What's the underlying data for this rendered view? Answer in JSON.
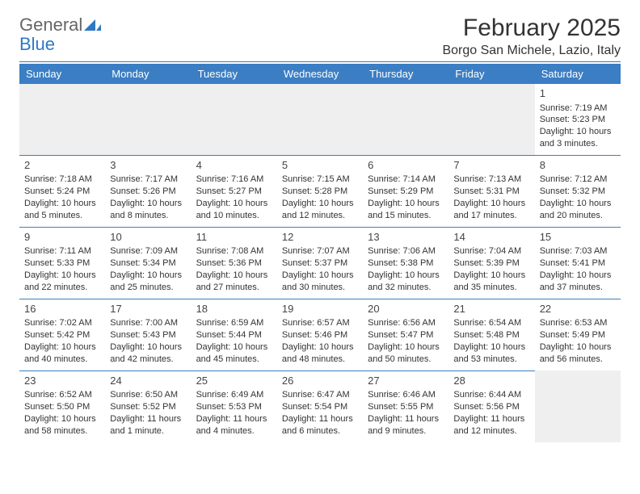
{
  "brand": {
    "word1": "General",
    "word2": "Blue",
    "color": "#2f78c4"
  },
  "header": {
    "month_title": "February 2025",
    "location": "Borgo San Michele, Lazio, Italy"
  },
  "colors": {
    "header_bg": "#3b7ec4",
    "header_text": "#ffffff",
    "rule": "#3b7ec4",
    "empty_bg": "#efefef"
  },
  "day_labels": [
    "Sunday",
    "Monday",
    "Tuesday",
    "Wednesday",
    "Thursday",
    "Friday",
    "Saturday"
  ],
  "weeks": [
    [
      null,
      null,
      null,
      null,
      null,
      null,
      {
        "n": "1",
        "sunrise": "Sunrise: 7:19 AM",
        "sunset": "Sunset: 5:23 PM",
        "day1": "Daylight: 10 hours",
        "day2": "and 3 minutes."
      }
    ],
    [
      {
        "n": "2",
        "sunrise": "Sunrise: 7:18 AM",
        "sunset": "Sunset: 5:24 PM",
        "day1": "Daylight: 10 hours",
        "day2": "and 5 minutes."
      },
      {
        "n": "3",
        "sunrise": "Sunrise: 7:17 AM",
        "sunset": "Sunset: 5:26 PM",
        "day1": "Daylight: 10 hours",
        "day2": "and 8 minutes."
      },
      {
        "n": "4",
        "sunrise": "Sunrise: 7:16 AM",
        "sunset": "Sunset: 5:27 PM",
        "day1": "Daylight: 10 hours",
        "day2": "and 10 minutes."
      },
      {
        "n": "5",
        "sunrise": "Sunrise: 7:15 AM",
        "sunset": "Sunset: 5:28 PM",
        "day1": "Daylight: 10 hours",
        "day2": "and 12 minutes."
      },
      {
        "n": "6",
        "sunrise": "Sunrise: 7:14 AM",
        "sunset": "Sunset: 5:29 PM",
        "day1": "Daylight: 10 hours",
        "day2": "and 15 minutes."
      },
      {
        "n": "7",
        "sunrise": "Sunrise: 7:13 AM",
        "sunset": "Sunset: 5:31 PM",
        "day1": "Daylight: 10 hours",
        "day2": "and 17 minutes."
      },
      {
        "n": "8",
        "sunrise": "Sunrise: 7:12 AM",
        "sunset": "Sunset: 5:32 PM",
        "day1": "Daylight: 10 hours",
        "day2": "and 20 minutes."
      }
    ],
    [
      {
        "n": "9",
        "sunrise": "Sunrise: 7:11 AM",
        "sunset": "Sunset: 5:33 PM",
        "day1": "Daylight: 10 hours",
        "day2": "and 22 minutes."
      },
      {
        "n": "10",
        "sunrise": "Sunrise: 7:09 AM",
        "sunset": "Sunset: 5:34 PM",
        "day1": "Daylight: 10 hours",
        "day2": "and 25 minutes."
      },
      {
        "n": "11",
        "sunrise": "Sunrise: 7:08 AM",
        "sunset": "Sunset: 5:36 PM",
        "day1": "Daylight: 10 hours",
        "day2": "and 27 minutes."
      },
      {
        "n": "12",
        "sunrise": "Sunrise: 7:07 AM",
        "sunset": "Sunset: 5:37 PM",
        "day1": "Daylight: 10 hours",
        "day2": "and 30 minutes."
      },
      {
        "n": "13",
        "sunrise": "Sunrise: 7:06 AM",
        "sunset": "Sunset: 5:38 PM",
        "day1": "Daylight: 10 hours",
        "day2": "and 32 minutes."
      },
      {
        "n": "14",
        "sunrise": "Sunrise: 7:04 AM",
        "sunset": "Sunset: 5:39 PM",
        "day1": "Daylight: 10 hours",
        "day2": "and 35 minutes."
      },
      {
        "n": "15",
        "sunrise": "Sunrise: 7:03 AM",
        "sunset": "Sunset: 5:41 PM",
        "day1": "Daylight: 10 hours",
        "day2": "and 37 minutes."
      }
    ],
    [
      {
        "n": "16",
        "sunrise": "Sunrise: 7:02 AM",
        "sunset": "Sunset: 5:42 PM",
        "day1": "Daylight: 10 hours",
        "day2": "and 40 minutes."
      },
      {
        "n": "17",
        "sunrise": "Sunrise: 7:00 AM",
        "sunset": "Sunset: 5:43 PM",
        "day1": "Daylight: 10 hours",
        "day2": "and 42 minutes."
      },
      {
        "n": "18",
        "sunrise": "Sunrise: 6:59 AM",
        "sunset": "Sunset: 5:44 PM",
        "day1": "Daylight: 10 hours",
        "day2": "and 45 minutes."
      },
      {
        "n": "19",
        "sunrise": "Sunrise: 6:57 AM",
        "sunset": "Sunset: 5:46 PM",
        "day1": "Daylight: 10 hours",
        "day2": "and 48 minutes."
      },
      {
        "n": "20",
        "sunrise": "Sunrise: 6:56 AM",
        "sunset": "Sunset: 5:47 PM",
        "day1": "Daylight: 10 hours",
        "day2": "and 50 minutes."
      },
      {
        "n": "21",
        "sunrise": "Sunrise: 6:54 AM",
        "sunset": "Sunset: 5:48 PM",
        "day1": "Daylight: 10 hours",
        "day2": "and 53 minutes."
      },
      {
        "n": "22",
        "sunrise": "Sunrise: 6:53 AM",
        "sunset": "Sunset: 5:49 PM",
        "day1": "Daylight: 10 hours",
        "day2": "and 56 minutes."
      }
    ],
    [
      {
        "n": "23",
        "sunrise": "Sunrise: 6:52 AM",
        "sunset": "Sunset: 5:50 PM",
        "day1": "Daylight: 10 hours",
        "day2": "and 58 minutes."
      },
      {
        "n": "24",
        "sunrise": "Sunrise: 6:50 AM",
        "sunset": "Sunset: 5:52 PM",
        "day1": "Daylight: 11 hours",
        "day2": "and 1 minute."
      },
      {
        "n": "25",
        "sunrise": "Sunrise: 6:49 AM",
        "sunset": "Sunset: 5:53 PM",
        "day1": "Daylight: 11 hours",
        "day2": "and 4 minutes."
      },
      {
        "n": "26",
        "sunrise": "Sunrise: 6:47 AM",
        "sunset": "Sunset: 5:54 PM",
        "day1": "Daylight: 11 hours",
        "day2": "and 6 minutes."
      },
      {
        "n": "27",
        "sunrise": "Sunrise: 6:46 AM",
        "sunset": "Sunset: 5:55 PM",
        "day1": "Daylight: 11 hours",
        "day2": "and 9 minutes."
      },
      {
        "n": "28",
        "sunrise": "Sunrise: 6:44 AM",
        "sunset": "Sunset: 5:56 PM",
        "day1": "Daylight: 11 hours",
        "day2": "and 12 minutes."
      },
      null
    ]
  ]
}
